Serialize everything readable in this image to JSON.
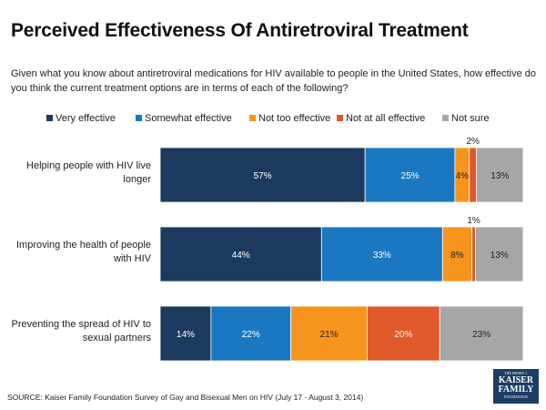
{
  "page": {
    "title": "Perceived Effectiveness Of Antiretroviral Treatment",
    "subtitle": "Given what you know about antiretroviral medications for HIV available to people in the United States, how effective do you think the current treatment options are in terms of each of the following?",
    "source": "SOURCE: Kaiser Family Foundation Survey of Gay and Bisexual Men on HIV (July 17 - August 3, 2014)",
    "logo": {
      "line1": "THE HENRY J.",
      "line2": "KAISER",
      "line3": "FAMILY",
      "line4": "FOUNDATION"
    }
  },
  "chart_data": {
    "type": "bar",
    "orientation": "horizontal-stacked-100",
    "title": "Perceived Effectiveness Of Antiretroviral Treatment",
    "categories": [
      "Helping people with HIV live longer",
      "Improving the health of people with HIV",
      "Preventing the spread of HIV to sexual partners"
    ],
    "category_lines": [
      [
        "Helping people with HIV live",
        "longer"
      ],
      [
        "Improving the health of people",
        "with HIV"
      ],
      [
        "Preventing the spread of HIV to",
        "sexual partners"
      ]
    ],
    "series": [
      {
        "name": "Very effective",
        "color": "#1c3a5e",
        "values": [
          57,
          44,
          14
        ]
      },
      {
        "name": "Somewhat effective",
        "color": "#1a78c2",
        "values": [
          25,
          33,
          22
        ]
      },
      {
        "name": "Not too effective",
        "color": "#f7941d",
        "values": [
          4,
          8,
          21
        ]
      },
      {
        "name": "Not at all effective",
        "color": "#e0592a",
        "values": [
          2,
          1,
          20
        ]
      },
      {
        "name": "Not sure",
        "color": "#a6a6a6",
        "values": [
          13,
          13,
          23
        ]
      }
    ],
    "labels": [
      [
        "57%",
        "25%",
        "4%",
        "2%",
        "13%"
      ],
      [
        "44%",
        "33%",
        "8%",
        "1%",
        "13%"
      ],
      [
        "14%",
        "22%",
        "21%",
        "20%",
        "23%"
      ]
    ],
    "label_above": [
      [
        false,
        false,
        false,
        true,
        false
      ],
      [
        false,
        false,
        false,
        true,
        false
      ],
      [
        false,
        false,
        false,
        false,
        false
      ]
    ],
    "legend_position": "top",
    "xlim": [
      0,
      100
    ]
  }
}
